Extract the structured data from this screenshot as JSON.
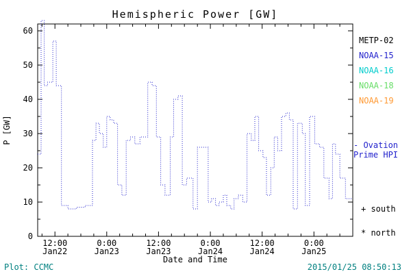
{
  "window": {
    "background": "#ffffff",
    "axis_color": "#000000",
    "footer_color": "#008080"
  },
  "chart_data": {
    "type": "line",
    "line_style": "dotted-step",
    "title": "Hemispheric Power [GW]",
    "xlabel": "Date and Time",
    "ylabel": "P [GW]",
    "ylim": [
      0,
      62
    ],
    "yticks": [
      0,
      10,
      20,
      30,
      40,
      50,
      60
    ],
    "xlim_hours": [
      8,
      81
    ],
    "xticks": [
      {
        "hour": 12,
        "time": "12:00",
        "date": "Jan22"
      },
      {
        "hour": 24,
        "time": "0:00",
        "date": "Jan23"
      },
      {
        "hour": 36,
        "time": "12:00",
        "date": "Jan23"
      },
      {
        "hour": 48,
        "time": "0:00",
        "date": "Jan24"
      },
      {
        "hour": 60,
        "time": "12:00",
        "date": "Jan24"
      },
      {
        "hour": 72,
        "time": "0:00",
        "date": "Jan25"
      }
    ],
    "grid": false,
    "series": [
      {
        "name": "Ovation Prime HPI",
        "color": "#2222cc",
        "x_hours": [
          8,
          8.8,
          9.5,
          10.3,
          11.5,
          12.3,
          13.5,
          15,
          17,
          19,
          20.7,
          21.5,
          22.3,
          23.2,
          24,
          24.8,
          25.6,
          26.5,
          27.5,
          28.5,
          29.5,
          30.5,
          31.7,
          33.5,
          34.5,
          35.5,
          36.5,
          37.5,
          38.7,
          39.5,
          40.5,
          41.5,
          42.5,
          44,
          45,
          46.2,
          47.5,
          48.3,
          49.2,
          50,
          51,
          51.8,
          52.7,
          53.5,
          54.5,
          55.5,
          56.5,
          57.5,
          58.3,
          59.2,
          60.2,
          61,
          62,
          62.8,
          63.6,
          64.5,
          65.5,
          66.3,
          67.2,
          68.2,
          69.3,
          70,
          71,
          72.2,
          73.3,
          74.3,
          75.5,
          76.3,
          77,
          78,
          79.3,
          80.3
        ],
        "values": [
          24,
          63,
          44,
          45,
          57,
          44,
          9,
          8,
          8.5,
          9,
          28,
          33,
          30,
          26,
          35,
          34,
          33,
          15,
          12,
          28,
          29,
          27,
          29,
          45,
          44,
          29,
          15,
          12,
          29,
          40,
          41,
          15,
          17,
          8,
          26,
          26,
          10,
          11,
          9,
          10,
          12,
          9,
          8,
          11,
          12,
          10,
          30,
          28,
          35,
          25,
          23,
          12,
          20,
          29,
          25,
          35,
          36,
          34,
          8,
          33,
          30,
          9,
          35,
          27,
          26,
          17,
          11,
          27,
          24,
          17,
          11,
          11
        ]
      }
    ],
    "legend": {
      "position": "right",
      "entries": [
        {
          "label": "METP-02",
          "color": "#000000"
        },
        {
          "label": "NOAA-15",
          "color": "#2222cc"
        },
        {
          "label": "NOAA-16",
          "color": "#00cccc"
        },
        {
          "label": "NOAA-18",
          "color": "#66dd66"
        },
        {
          "label": "NOAA-19",
          "color": "#ff9933"
        }
      ]
    },
    "annotations": {
      "ovation_line1": "- Ovation",
      "ovation_line2": "Prime HPI",
      "south": "+ south",
      "north": "* north"
    }
  },
  "footer": {
    "plot_credit": "Plot: CCMC",
    "timestamp": "2015/01/25 08:50:13"
  }
}
